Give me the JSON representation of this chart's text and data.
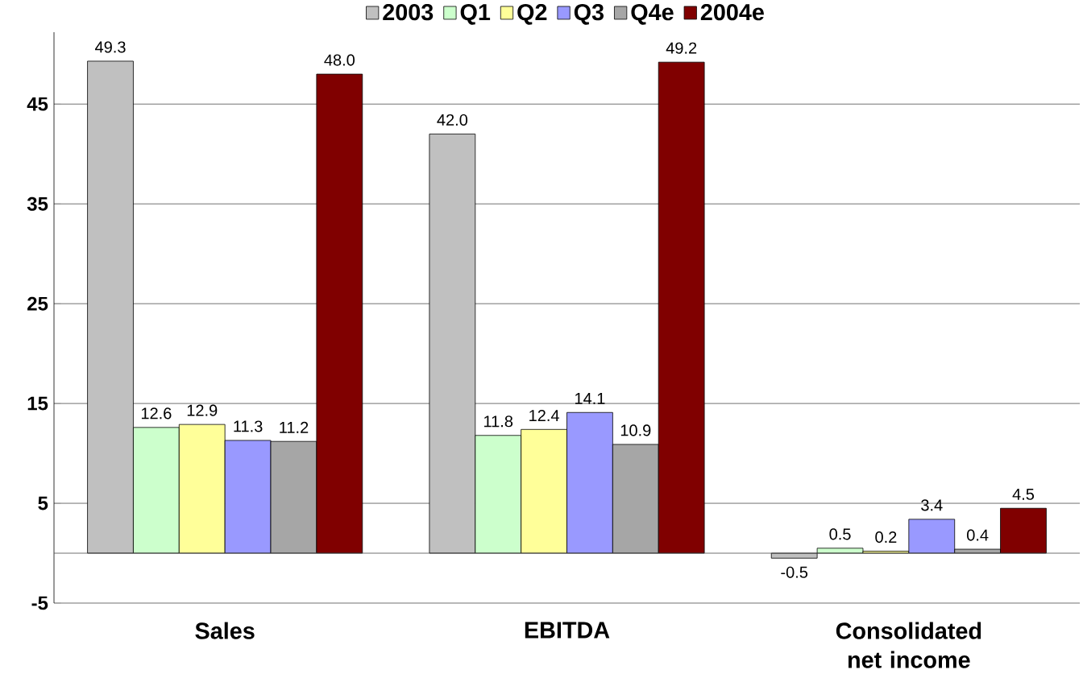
{
  "chart_data": {
    "type": "bar",
    "categories": [
      "Sales",
      "EBITDA",
      "Consolidated net income"
    ],
    "series": [
      {
        "name": "2003",
        "color": "#c0c0c0",
        "values": [
          49.3,
          42.0,
          -0.5
        ],
        "value_labels": [
          "49.3",
          "42.0",
          "-0.5"
        ]
      },
      {
        "name": "Q1",
        "color": "#ccffcc",
        "values": [
          12.6,
          11.8,
          0.5
        ],
        "value_labels": [
          "12.6",
          "11.8",
          "0.5"
        ]
      },
      {
        "name": "Q2",
        "color": "#ffff99",
        "values": [
          12.9,
          12.4,
          0.2
        ],
        "value_labels": [
          "12.9",
          "12.4",
          "0.2"
        ]
      },
      {
        "name": "Q3",
        "color": "#9999ff",
        "values": [
          11.3,
          14.1,
          3.4
        ],
        "value_labels": [
          "11.3",
          "14.1",
          "3.4"
        ]
      },
      {
        "name": "Q4e",
        "color": "#a6a6a6",
        "values": [
          11.2,
          10.9,
          0.4
        ],
        "value_labels": [
          "11.2",
          "10.9",
          "0.4"
        ]
      },
      {
        "name": "2004e",
        "color": "#800000",
        "values": [
          48.0,
          49.2,
          4.5
        ],
        "value_labels": [
          "48.0",
          "49.2",
          "4.5"
        ]
      }
    ],
    "ylim": [
      -5,
      52.2
    ],
    "yticks": [
      -5,
      5,
      15,
      25,
      35,
      45
    ],
    "grid": "y",
    "legend": "top"
  }
}
